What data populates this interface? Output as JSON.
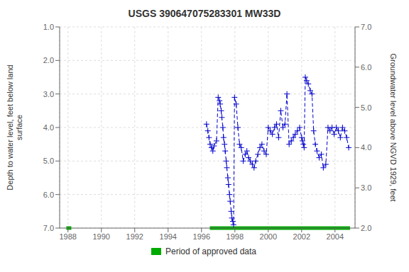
{
  "chart_data": {
    "type": "line",
    "title": "USGS 390647075283301 MW33D",
    "y_label": "Depth to water level, feet below land\nsurface",
    "y2_label": "Groundwater level above NGVD 1929, feet",
    "x": [
      1996.3,
      1996.38,
      1996.45,
      1996.52,
      1996.6,
      1996.68,
      1996.75,
      1996.9,
      1997.0,
      1997.08,
      1997.12,
      1997.18,
      1997.22,
      1997.28,
      1997.32,
      1997.38,
      1997.42,
      1997.48,
      1997.52,
      1997.58,
      1997.62,
      1997.68,
      1997.72,
      1997.78,
      1997.82,
      1997.88,
      1997.92,
      1997.98,
      1998.08,
      1998.18,
      1998.28,
      1998.38,
      1998.5,
      1998.62,
      1998.72,
      1998.82,
      1998.92,
      1999.05,
      1999.15,
      1999.25,
      1999.38,
      1999.5,
      1999.62,
      1999.75,
      1999.88,
      2000.0,
      2000.12,
      2000.25,
      2000.38,
      2000.5,
      2000.62,
      2000.75,
      2000.88,
      2001.0,
      2001.12,
      2001.25,
      2001.38,
      2001.5,
      2001.62,
      2001.75,
      2001.88,
      2002.0,
      2002.05,
      2002.1,
      2002.15,
      2002.22,
      2002.3,
      2002.4,
      2002.52,
      2002.62,
      2002.72,
      2002.82,
      2002.92,
      2003.05,
      2003.18,
      2003.3,
      2003.45,
      2003.58,
      2003.7,
      2003.82,
      2003.95,
      2004.08,
      2004.2,
      2004.32,
      2004.45,
      2004.58,
      2004.7,
      2004.82
    ],
    "values": [
      3.9,
      4.1,
      4.3,
      4.5,
      4.6,
      4.7,
      4.55,
      4.4,
      3.1,
      3.2,
      3.3,
      3.5,
      3.7,
      4.0,
      4.3,
      4.5,
      4.7,
      5.0,
      5.2,
      5.5,
      5.7,
      6.0,
      6.2,
      6.5,
      6.7,
      6.8,
      6.9,
      3.1,
      3.3,
      4.0,
      4.5,
      4.6,
      5.0,
      4.8,
      4.7,
      4.9,
      5.0,
      5.1,
      5.2,
      5.0,
      4.8,
      4.6,
      4.5,
      4.7,
      4.8,
      4.0,
      4.1,
      4.2,
      4.0,
      3.9,
      4.3,
      3.5,
      4.0,
      3.9,
      3.0,
      4.5,
      4.4,
      4.3,
      4.2,
      4.1,
      4.0,
      4.3,
      4.4,
      4.5,
      4.6,
      2.5,
      2.6,
      2.7,
      2.9,
      3.0,
      4.1,
      4.5,
      4.7,
      4.9,
      4.8,
      5.2,
      5.1,
      4.0,
      4.1,
      4.0,
      4.2,
      4.0,
      4.1,
      4.3,
      4.0,
      4.1,
      4.3,
      4.6
    ],
    "color": "#0000cc",
    "marker": "plus",
    "line_style": "dashed",
    "xlim": [
      1987.5,
      2005.2
    ],
    "xticks": [
      1988,
      1990,
      1992,
      1994,
      1996,
      1998,
      2000,
      2002,
      2004
    ],
    "ylim": [
      7.0,
      1.0
    ],
    "yticks": [
      {
        "value": 1.0,
        "label": "1.0"
      },
      {
        "value": 2.0,
        "label": "2.0"
      },
      {
        "value": 3.0,
        "label": "3.0"
      },
      {
        "value": 4.0,
        "label": "4.0"
      },
      {
        "value": 5.0,
        "label": "5.0"
      },
      {
        "value": 6.0,
        "label": "6.0"
      },
      {
        "value": 7.0,
        "label": "7.0"
      }
    ],
    "y2lim": [
      2.0,
      7.0
    ],
    "y2ticks": [
      {
        "value": 2.0,
        "label": "2.0"
      },
      {
        "value": 3.0,
        "label": "3.0"
      },
      {
        "value": 4.0,
        "label": "4.0"
      },
      {
        "value": 5.0,
        "label": "5.0"
      },
      {
        "value": 6.0,
        "label": "6.0"
      },
      {
        "value": 7.0,
        "label": "7.0"
      }
    ],
    "grid": true,
    "legend": "bottom",
    "periods": {
      "name": "Period of approved data",
      "color": "#00aa00",
      "ranges": [
        [
          1987.9,
          1988.2
        ],
        [
          1996.5,
          2004.9
        ]
      ]
    }
  }
}
